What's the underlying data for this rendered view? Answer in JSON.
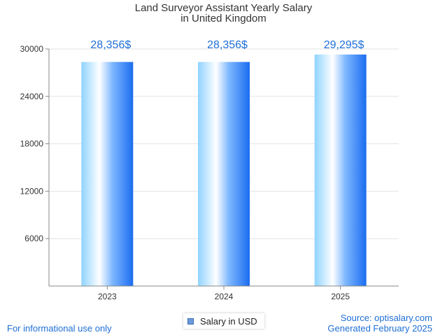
{
  "title_lines": [
    "Land Surveyor Assistant Yearly Salary",
    "in United Kingdom"
  ],
  "chart_data": {
    "type": "bar",
    "title": "Land Surveyor Assistant Yearly Salary in United Kingdom",
    "categories": [
      "2023",
      "2024",
      "2025"
    ],
    "series": [
      {
        "name": "Salary in USD",
        "values": [
          28356,
          28356,
          29295
        ]
      }
    ],
    "data_labels": [
      "28,356$",
      "28,356$",
      "29,295$"
    ],
    "yticks": [
      6000,
      12000,
      18000,
      24000,
      30000
    ],
    "ylim": [
      0,
      30000
    ],
    "grid": true,
    "legend_position": "bottom-center",
    "xlabel": "",
    "ylabel": ""
  },
  "legend": {
    "label": "Salary in USD"
  },
  "footer": {
    "left": "For informational use only",
    "source": "Source: optisalary.com",
    "generated": "Generated February 2025"
  },
  "colors": {
    "label": "#1f6fd6",
    "bar_light": "#e8f6ff",
    "bar_mid": "#8fd3ff",
    "bar_dark": "#1a6cf0",
    "grid": "#e3e3e3",
    "axis": "#888888"
  }
}
